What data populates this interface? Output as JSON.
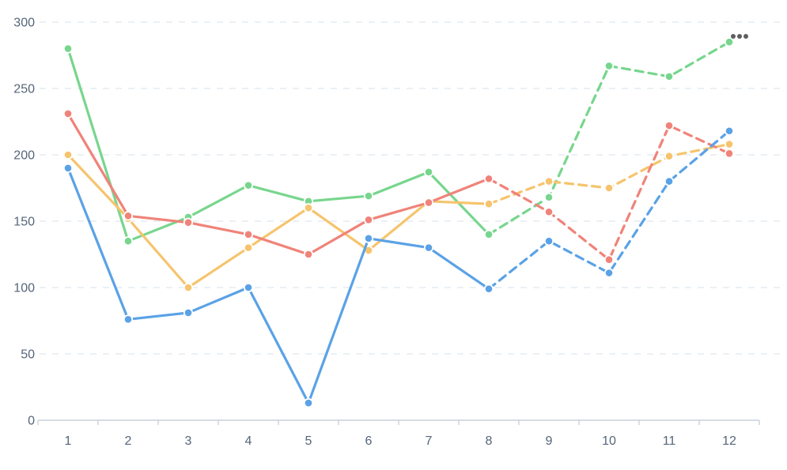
{
  "chart_data": {
    "type": "line",
    "title": "",
    "xlabel": "",
    "ylabel": "",
    "x": [
      1,
      2,
      3,
      4,
      5,
      6,
      7,
      8,
      9,
      10,
      11,
      12
    ],
    "x_tick_labels": [
      "1",
      "2",
      "3",
      "4",
      "5",
      "6",
      "7",
      "8",
      "9",
      "10",
      "11",
      "12"
    ],
    "y_ticks": [
      0,
      50,
      100,
      150,
      200,
      250,
      300
    ],
    "y_tick_labels": [
      "0",
      "50",
      "100",
      "150",
      "200",
      "250",
      "300"
    ],
    "ylim": [
      0,
      300
    ],
    "grid": "horizontal-dashed",
    "legend_position": "none",
    "dashed_from_x": 8,
    "series": [
      {
        "name": "green",
        "color": "#77d68d",
        "values": [
          280,
          135,
          153,
          177,
          165,
          169,
          187,
          140,
          168,
          267,
          259,
          285
        ]
      },
      {
        "name": "yellow",
        "color": "#f6c46d",
        "values": [
          200,
          152,
          100,
          130,
          160,
          128,
          165,
          163,
          180,
          175,
          199,
          208
        ]
      },
      {
        "name": "red",
        "color": "#f08379",
        "values": [
          231,
          154,
          149,
          140,
          125,
          151,
          164,
          182,
          157,
          121,
          222,
          201
        ]
      },
      {
        "name": "blue",
        "color": "#5aa2e6",
        "values": [
          190,
          76,
          81,
          100,
          13,
          137,
          130,
          99,
          135,
          111,
          180,
          218
        ]
      }
    ]
  },
  "colors": {
    "background": "#ffffff",
    "axis_label": "#55657a",
    "axis_line": "#c8d2db",
    "gridline": "#e4ebf2",
    "more_options_dot": "#5e5e5e"
  },
  "menu": {
    "more_options_label": "more options"
  }
}
